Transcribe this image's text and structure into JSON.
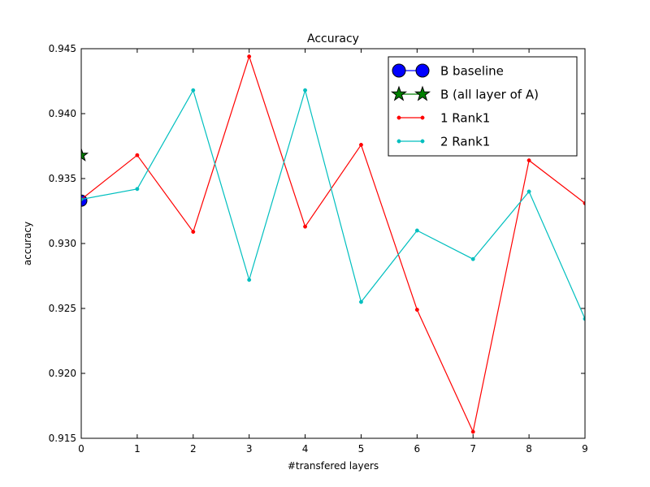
{
  "chart_data": {
    "type": "line",
    "title": "Accuracy",
    "xlabel": "#transfered layers",
    "ylabel": "accuracy",
    "xlim": [
      0,
      9
    ],
    "ylim": [
      0.915,
      0.945
    ],
    "x_ticks": [
      "0",
      "1",
      "2",
      "3",
      "4",
      "5",
      "6",
      "7",
      "8",
      "9"
    ],
    "y_ticks": [
      "0.915",
      "0.920",
      "0.925",
      "0.930",
      "0.935",
      "0.940",
      "0.945"
    ],
    "grid": false,
    "legend_position": "top-right",
    "series": [
      {
        "name": "B baseline",
        "color": "#0000ff",
        "marker": "circle",
        "x": [
          0
        ],
        "y": [
          0.9333
        ]
      },
      {
        "name": "B (all layer of A)",
        "color": "#008000",
        "marker": "star",
        "x": [
          0
        ],
        "y": [
          0.9368
        ]
      },
      {
        "name": "1 Rank1",
        "color": "#ff0000",
        "marker": "dot",
        "x": [
          0,
          1,
          2,
          3,
          4,
          5,
          6,
          7,
          8,
          9
        ],
        "y": [
          0.9334,
          0.9368,
          0.9309,
          0.9444,
          0.9313,
          0.9376,
          0.9249,
          0.9155,
          0.9364,
          0.9331
        ]
      },
      {
        "name": "2 Rank1",
        "color": "#00bfbf",
        "marker": "dot",
        "x": [
          0,
          1,
          2,
          3,
          4,
          5,
          6,
          7,
          8,
          9
        ],
        "y": [
          0.9334,
          0.9342,
          0.9418,
          0.9272,
          0.9418,
          0.9255,
          0.931,
          0.9288,
          0.934,
          0.9242
        ]
      }
    ]
  }
}
